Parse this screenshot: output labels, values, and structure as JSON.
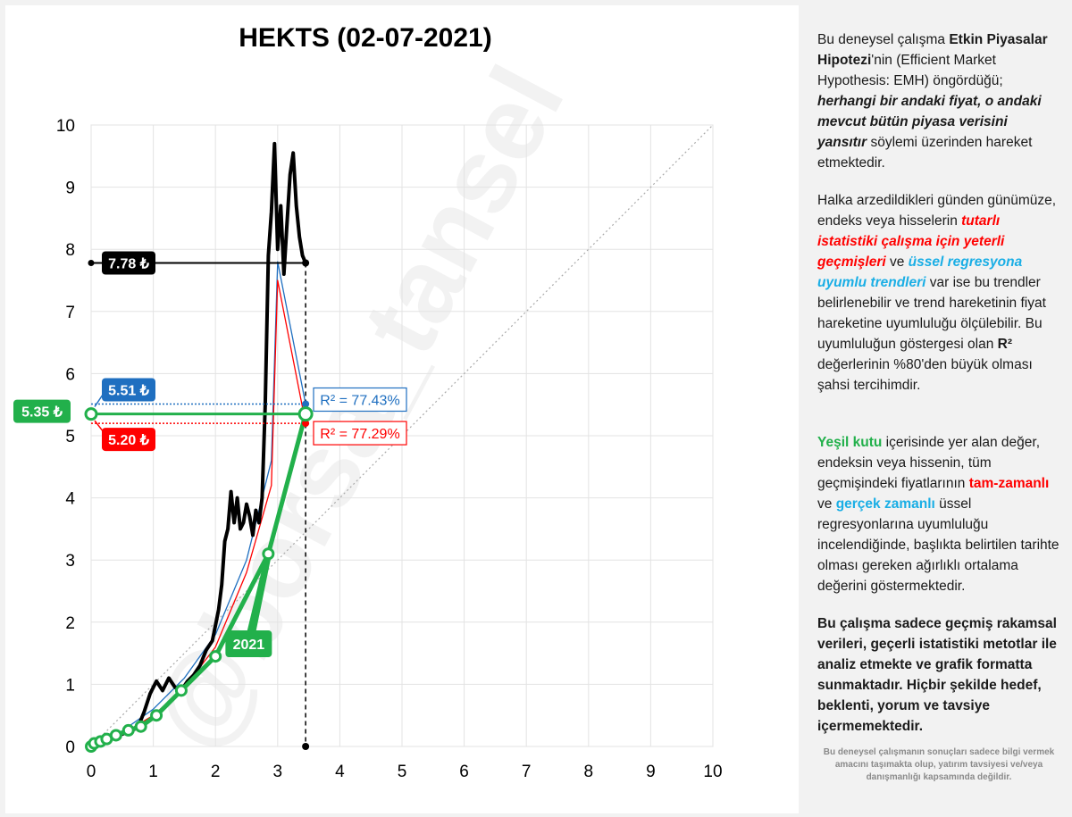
{
  "chart_data": {
    "type": "line",
    "title": "HEKTS (02-07-2021)",
    "xlim": [
      0,
      10
    ],
    "ylim": [
      0,
      10
    ],
    "x_ticks": [
      "0",
      "1",
      "2",
      "3",
      "4",
      "5",
      "6",
      "7",
      "8",
      "9",
      "10"
    ],
    "y_ticks": [
      "0",
      "1",
      "2",
      "3",
      "4",
      "5",
      "6",
      "7",
      "8",
      "9",
      "10"
    ],
    "grid": true,
    "watermark": "@borsa_tansel",
    "series": [
      {
        "name": "price",
        "color": "#000000",
        "x": [
          0,
          0.5,
          0.75,
          0.85,
          0.95,
          1.05,
          1.15,
          1.25,
          1.35,
          1.45,
          1.55,
          1.65,
          1.75,
          1.85,
          1.95,
          2.05,
          2.1,
          2.15,
          2.2,
          2.25,
          2.3,
          2.35,
          2.4,
          2.45,
          2.5,
          2.55,
          2.6,
          2.65,
          2.7,
          2.75,
          2.8,
          2.85,
          2.9,
          2.95,
          3.0,
          3.05,
          3.1,
          3.15,
          3.2,
          3.25,
          3.3,
          3.35,
          3.4,
          3.45
        ],
        "y": [
          0,
          0.2,
          0.3,
          0.55,
          0.85,
          1.05,
          0.9,
          1.1,
          0.95,
          0.9,
          1.05,
          1.15,
          1.3,
          1.55,
          1.7,
          2.2,
          2.6,
          3.3,
          3.5,
          4.1,
          3.6,
          4.0,
          3.5,
          3.6,
          3.9,
          3.7,
          3.4,
          3.8,
          3.6,
          4.0,
          5.5,
          7.9,
          8.6,
          9.7,
          8.0,
          8.7,
          7.6,
          8.4,
          9.2,
          9.55,
          8.7,
          8.2,
          7.9,
          7.78
        ]
      },
      {
        "name": "real-time exp regression",
        "color": "#1f6fc0",
        "x": [
          0,
          0.5,
          1.0,
          1.5,
          2.0,
          2.5,
          2.9,
          3.0,
          3.45
        ],
        "y": [
          0,
          0.25,
          0.6,
          1.1,
          1.8,
          3.0,
          4.6,
          7.8,
          5.51
        ]
      },
      {
        "name": "full-time exp regression",
        "color": "#ff0000",
        "x": [
          0,
          0.5,
          1.0,
          1.5,
          2.0,
          2.5,
          2.9,
          3.0,
          3.45
        ],
        "y": [
          0,
          0.2,
          0.5,
          0.95,
          1.6,
          2.8,
          4.2,
          7.5,
          5.2
        ]
      },
      {
        "name": "weighted average",
        "color": "#22b04b",
        "x": [
          0,
          0.05,
          0.15,
          0.25,
          0.4,
          0.6,
          0.8,
          1.05,
          1.45,
          2.0,
          2.85,
          3.45
        ],
        "y": [
          0,
          0.05,
          0.08,
          0.12,
          0.18,
          0.26,
          0.32,
          0.5,
          0.9,
          1.45,
          3.1,
          5.35
        ]
      }
    ],
    "diagonal": {
      "from": [
        0,
        0
      ],
      "to": [
        10,
        10
      ],
      "color": "#aaaaaa"
    },
    "current_x": 3.45,
    "labels": {
      "price": {
        "value": 7.78,
        "text": "7.78 ₺",
        "color": "#000000"
      },
      "blue": {
        "value": 5.51,
        "text": "5.51 ₺",
        "color": "#1f6fc0"
      },
      "green": {
        "value": 5.35,
        "text": "5.35 ₺",
        "color": "#22b04b"
      },
      "red": {
        "value": 5.2,
        "text": "5.20 ₺",
        "color": "#ff0000"
      }
    },
    "r2": {
      "blue": {
        "text": "R² = 77.43%",
        "color": "#1f6fc0"
      },
      "red": {
        "text": "R² = 77.29%",
        "color": "#ff0000"
      }
    },
    "year_marker": {
      "text": "2021",
      "x": 2.85,
      "y": 3.1
    }
  },
  "side": {
    "p1": {
      "a": "Bu deneysel çalışma ",
      "b": "Etkin Piyasalar Hipotezi",
      "c": "'nin (Efficient Market Hypothesis: EMH) öngördüğü; ",
      "d": "herhangi bir andaki fiyat, o andaki mevcut bütün piyasa verisini yansıtır",
      "e": "  söylemi üzerinden hareket etmektedir."
    },
    "p2": {
      "a": "Halka arzedildikleri günden günümüze, endeks veya hisselerin ",
      "b": "tutarlı istatistiki çalışma için yeterli geçmişleri",
      "c": " ve ",
      "d": "üssel regresyona uyumlu trendleri",
      "e": " var ise bu trendler belirlenebilir  ve trend hareketinin fiyat hareketine uyumluluğu ölçülebilir.  Bu uyumluluğun göstergesi olan ",
      "f": "R²",
      "g": " değerlerinin %80'den büyük olması şahsi tercihimdir."
    },
    "p3": {
      "a": "Yeşil kutu",
      "b": " içerisinde yer alan değer, endeksin veya hissenin, tüm geçmişindeki fiyatlarının ",
      "c": "tam-zamanlı",
      "d": " ve ",
      "e": "gerçek zamanlı",
      "f": " üssel regresyonlarına uyumluluğu incelendiğinde, başlıkta belirtilen tarihte olması gereken ağırlıklı ortalama değerini göstermektedir."
    },
    "p4": "Bu çalışma sadece geçmiş rakamsal verileri, geçerli istatistiki metotlar ile  analiz etmekte ve grafik formatta sunmaktadır. Hiçbir şekilde hedef, beklenti, yorum ve tavsiye içermemektedir.",
    "footnote": "Bu deneysel çalışmanın sonuçları sadece bilgi vermek amacını taşımakta olup, yatırım tavsiyesi ve/veya danışmanlığı kapsamında değildir."
  }
}
